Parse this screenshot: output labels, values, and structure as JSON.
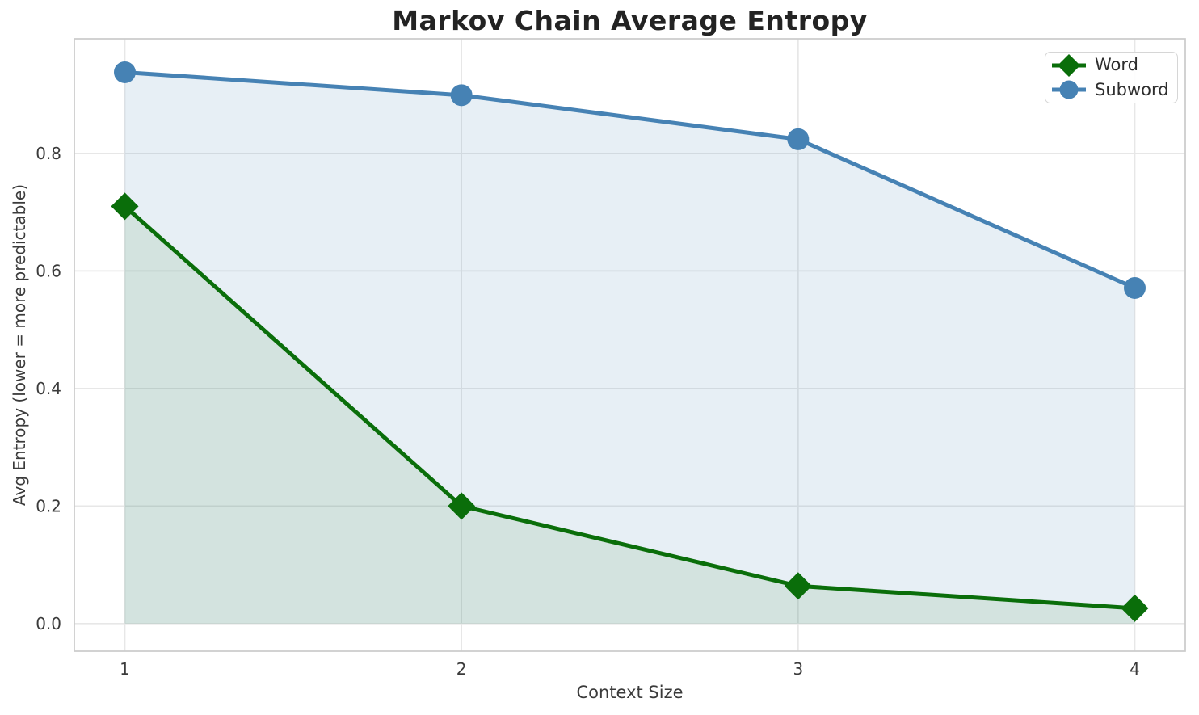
{
  "chart_data": {
    "type": "line",
    "title": "Markov Chain Average Entropy",
    "xlabel": "Context Size",
    "ylabel": "Avg Entropy (lower = more predictable)",
    "x": [
      1,
      2,
      3,
      4
    ],
    "series": [
      {
        "name": "Word",
        "values": [
          0.71,
          0.2,
          0.064,
          0.026
        ],
        "color": "#0a6e0a",
        "marker": "diamond",
        "fill_to_zero": true,
        "fill_opacity": 0.09
      },
      {
        "name": "Subword",
        "values": [
          0.938,
          0.899,
          0.824,
          0.571
        ],
        "color": "#4682b4",
        "marker": "circle",
        "fill_to_zero": true,
        "fill_opacity": 0.13
      }
    ],
    "xticks": [
      1,
      2,
      3,
      4
    ],
    "xtick_labels": [
      "1",
      "2",
      "3",
      "4"
    ],
    "yticks": [
      0,
      0.2,
      0.4,
      0.6,
      0.8
    ],
    "ytick_labels": [
      "0.0",
      "0.2",
      "0.4",
      "0.6",
      "0.8"
    ],
    "xlim": [
      0.85,
      4.15
    ],
    "ylim": [
      -0.047,
      0.995
    ],
    "grid": true,
    "legend_position": "upper right",
    "style": {
      "background": "#ffffff",
      "grid_color": "#e7e7e7",
      "spine_color": "#cbcbcb",
      "tick_color": "#3b3b3b",
      "title_color": "#232323",
      "label_color": "#3b3b3b",
      "legend_border": "#d6d6d6",
      "line_width": 5,
      "tick_font_size": 20
    }
  },
  "legend": {
    "items": [
      {
        "label": "Word"
      },
      {
        "label": "Subword"
      }
    ]
  }
}
